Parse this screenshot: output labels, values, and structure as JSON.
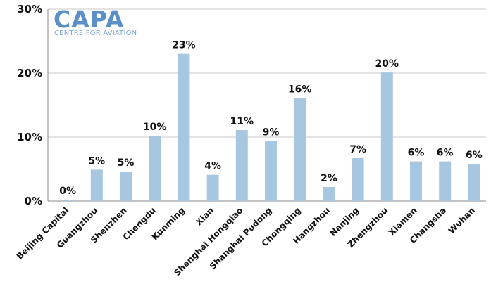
{
  "logo": {
    "name": "CAPA",
    "tagline": "CENTRE FOR AVIATION"
  },
  "colors": {
    "bar": "#a7c6e0",
    "grid": "#c9c9c9",
    "axis": "#888888"
  },
  "chart_data": {
    "type": "bar",
    "categories": [
      "Beijing Capital",
      "Guangzhou",
      "Shenzhen",
      "Chengdu",
      "Kunming",
      "Xian",
      "Shanghai Hongqiao",
      "Shanghai Pudong",
      "Chongqing",
      "Hangzhou",
      "Nanjing",
      "Zhengzhou",
      "Xiamen",
      "Changsha",
      "Wuhan"
    ],
    "values": [
      0.2,
      4.9,
      4.6,
      10.2,
      23.0,
      4.1,
      11.1,
      9.4,
      16.1,
      2.2,
      6.7,
      20.1,
      6.2,
      6.2,
      5.8
    ],
    "data_labels": [
      "0%",
      "5%",
      "5%",
      "10%",
      "23%",
      "4%",
      "11%",
      "9%",
      "16%",
      "2%",
      "7%",
      "20%",
      "6%",
      "6%",
      "6%"
    ],
    "ylim": [
      0,
      30
    ],
    "yticks": [
      0,
      10,
      20,
      30
    ],
    "ytick_labels": [
      "0%",
      "10%",
      "20%",
      "30%"
    ],
    "grid": true,
    "legend": "none"
  }
}
